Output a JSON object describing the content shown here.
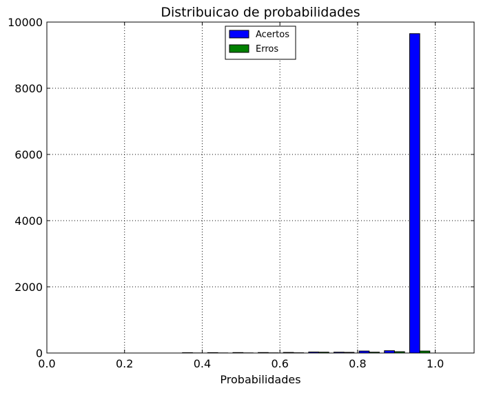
{
  "chart_data": {
    "type": "bar",
    "title": "Distribuicao de probabilidades",
    "xlabel": "Probabilidades",
    "ylabel": "",
    "xlim": [
      0.0,
      1.1
    ],
    "ylim": [
      0,
      10000
    ],
    "xticks": [
      "0.0",
      "0.2",
      "0.4",
      "0.6",
      "0.8",
      "1.0"
    ],
    "xtick_values": [
      0.0,
      0.2,
      0.4,
      0.6,
      0.8,
      1.0
    ],
    "yticks": [
      "0",
      "2000",
      "4000",
      "6000",
      "8000",
      "10000"
    ],
    "ytick_values": [
      0,
      2000,
      4000,
      6000,
      8000,
      10000
    ],
    "grid": true,
    "legend_position": "top-center",
    "bin_centers": [
      0.375,
      0.44,
      0.505,
      0.57,
      0.635,
      0.7,
      0.765,
      0.83,
      0.895,
      0.96
    ],
    "series": [
      {
        "name": "Acertos",
        "color": "#0000ff",
        "values": [
          10,
          12,
          14,
          15,
          18,
          30,
          25,
          60,
          70,
          9650
        ]
      },
      {
        "name": "Erros",
        "color": "#008000",
        "values": [
          3,
          4,
          5,
          6,
          8,
          25,
          20,
          25,
          40,
          60
        ]
      }
    ]
  }
}
